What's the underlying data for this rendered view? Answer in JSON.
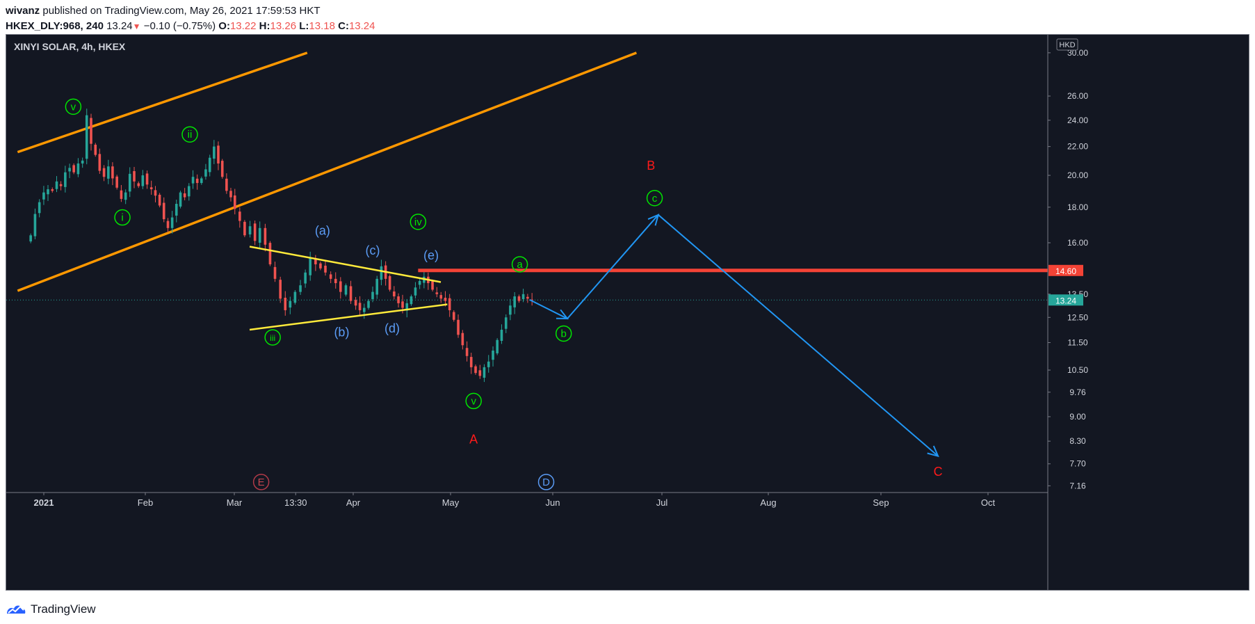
{
  "header": {
    "user": "wivanz",
    "published_text": "published on TradingView.com, May 26, 2021 17:59:53 HKT",
    "symbol": "HKEX_DLY:968, 240",
    "last": "13.24",
    "change": "−0.10 (−0.75%)",
    "o_label": "O:",
    "o_value": "13.22",
    "h_label": "H:",
    "h_value": "13.26",
    "l_label": "L:",
    "l_value": "13.18",
    "c_label": "C:",
    "c_value": "13.24"
  },
  "footer": {
    "brand": "TradingView"
  },
  "colors": {
    "background": "#131722",
    "up": "#26a69a",
    "down": "#ef5350",
    "channel": "#ff9800",
    "triangle": "#ffeb3b",
    "resistance": "#f44336",
    "projection": "#2196f3",
    "wave_green": "#00e600",
    "wave_blue": "#5b9cf6",
    "wave_red": "#ff1a1a"
  },
  "chart_data": {
    "type": "candlestick",
    "title": "XINYI SOLAR, 4h, HKEX",
    "currency_badge": "HKD",
    "scale": "log",
    "y_ticks": [
      30,
      26,
      24,
      22,
      20,
      18,
      16,
      13.5,
      12.5,
      11.5,
      10.5,
      9.76,
      9.0,
      8.3,
      7.7,
      7.16
    ],
    "y_tick_labels": [
      "30.00",
      "26.00",
      "24.00",
      "22.00",
      "20.00",
      "18.00",
      "16.00",
      "13.50",
      "12.50",
      "11.50",
      "10.50",
      "9.76",
      "9.00",
      "8.30",
      "7.70",
      "7.16"
    ],
    "x_ticks": [
      "2021",
      "Feb",
      "Mar",
      "13:30",
      "Apr",
      "May",
      "Jun",
      "Jul",
      "Aug",
      "Sep",
      "Oct"
    ],
    "price_badges": [
      {
        "label": "14.60",
        "value": 14.6,
        "color": "#f44336"
      },
      {
        "label": "13.24",
        "value": 13.24,
        "color": "#26a69a"
      }
    ],
    "resistance_level": 14.6,
    "last_price": 13.24,
    "series": [
      {
        "name": "",
        "start_date": "2020-12-28",
        "closes": [
          16.4,
          17.6,
          18.3,
          18.9,
          19.1,
          19.0,
          19.6,
          19.3,
          20.2,
          20.5,
          20.2,
          20.8,
          21.0,
          24.4,
          22.2,
          21.4,
          20.3,
          19.9,
          20.6,
          19.8,
          19.2,
          18.5,
          18.9,
          20.1,
          19.6,
          19.3,
          20.0,
          19.4,
          19.1,
          18.7,
          18.1,
          17.3,
          16.8,
          17.4,
          18.2,
          18.9,
          18.6,
          19.3,
          19.9,
          19.5,
          19.8,
          20.4,
          21.2,
          22.0,
          20.8,
          19.9,
          19.0,
          18.6,
          17.9,
          17.2,
          16.4,
          16.9,
          16.1,
          16.8,
          15.9,
          14.9,
          14.2,
          13.3,
          12.8,
          13.2,
          13.6,
          13.9,
          14.5,
          15.2,
          14.9,
          14.7,
          14.5,
          14.2,
          14.0,
          13.6,
          13.9,
          13.2,
          13.0,
          12.8,
          12.9,
          13.2,
          13.6,
          14.2,
          14.8,
          14.2,
          13.7,
          13.4,
          13.1,
          12.9,
          13.1,
          13.4,
          13.8,
          14.1,
          14.3,
          14.0,
          13.7,
          13.5,
          13.3,
          13.2,
          12.8,
          12.4,
          11.8,
          11.4,
          11.0,
          10.6,
          10.4,
          10.3,
          10.6,
          10.8,
          11.2,
          11.6,
          12.0,
          12.5,
          13.0,
          13.4,
          13.2,
          13.5,
          13.3,
          13.24
        ]
      }
    ],
    "trendlines": [
      {
        "name": "channel-upper",
        "from": [
          "2020-12-24",
          21.6
        ],
        "to": [
          "2021-03-20",
          30.0
        ]
      },
      {
        "name": "channel-lower",
        "from": [
          "2020-12-24",
          13.65
        ],
        "to": [
          "2021-06-24",
          30.0
        ]
      },
      {
        "name": "triangle-upper",
        "from": [
          "2021-03-05",
          15.8
        ],
        "to": [
          "2021-04-28",
          14.05
        ]
      },
      {
        "name": "triangle-lower",
        "from": [
          "2021-03-05",
          12.0
        ],
        "to": [
          "2021-04-30",
          13.05
        ]
      }
    ],
    "projection_path": [
      [
        "2021-05-25",
        13.25
      ],
      [
        "2021-06-05",
        12.45
      ],
      [
        "2021-06-30",
        17.55
      ],
      [
        "2021-09-17",
        7.9
      ]
    ],
    "wave_labels": [
      {
        "text": "v",
        "style": "circle",
        "color": "green",
        "date": "2021-01-10",
        "price": 25.1
      },
      {
        "text": "i",
        "style": "circle",
        "color": "green",
        "date": "2021-01-25",
        "price": 17.4
      },
      {
        "text": "ii",
        "style": "circle",
        "color": "green",
        "date": "2021-02-15",
        "price": 22.9
      },
      {
        "text": "iii",
        "style": "circle",
        "color": "green",
        "date": "2021-03-11",
        "price": 11.7
      },
      {
        "text": "iv",
        "style": "circle",
        "color": "green",
        "date": "2021-04-21",
        "price": 17.15
      },
      {
        "text": "v",
        "style": "circle",
        "color": "green",
        "date": "2021-05-08",
        "price": 9.48
      },
      {
        "text": "a",
        "style": "circle",
        "color": "green",
        "date": "2021-05-22",
        "price": 14.9
      },
      {
        "text": "b",
        "style": "circle",
        "color": "green",
        "date": "2021-06-04",
        "price": 11.85
      },
      {
        "text": "c",
        "style": "circle",
        "color": "green",
        "date": "2021-06-29",
        "price": 18.55
      },
      {
        "text": "(a)",
        "style": "text",
        "color": "blue",
        "date": "2021-03-24",
        "price": 16.65
      },
      {
        "text": "(b)",
        "style": "text",
        "color": "blue",
        "date": "2021-03-29",
        "price": 11.9
      },
      {
        "text": "(c)",
        "style": "text",
        "color": "blue",
        "date": "2021-04-07",
        "price": 15.6
      },
      {
        "text": "(d)",
        "style": "text",
        "color": "blue",
        "date": "2021-04-13",
        "price": 12.05
      },
      {
        "text": "(e)",
        "style": "text",
        "color": "blue",
        "date": "2021-04-25",
        "price": 15.35
      },
      {
        "text": "E",
        "style": "circle",
        "color": "red",
        "date": "2021-03-08",
        "price": 7.25
      },
      {
        "text": "D",
        "style": "circle",
        "color": "blue",
        "date": "2021-05-30",
        "price": 7.25
      },
      {
        "text": "A",
        "style": "text",
        "color": "red",
        "date": "2021-05-08",
        "price": 8.35
      },
      {
        "text": "B",
        "style": "text",
        "color": "red",
        "date": "2021-06-28",
        "price": 20.65
      },
      {
        "text": "C",
        "style": "text",
        "color": "red",
        "date": "2021-09-17",
        "price": 7.5
      }
    ]
  }
}
